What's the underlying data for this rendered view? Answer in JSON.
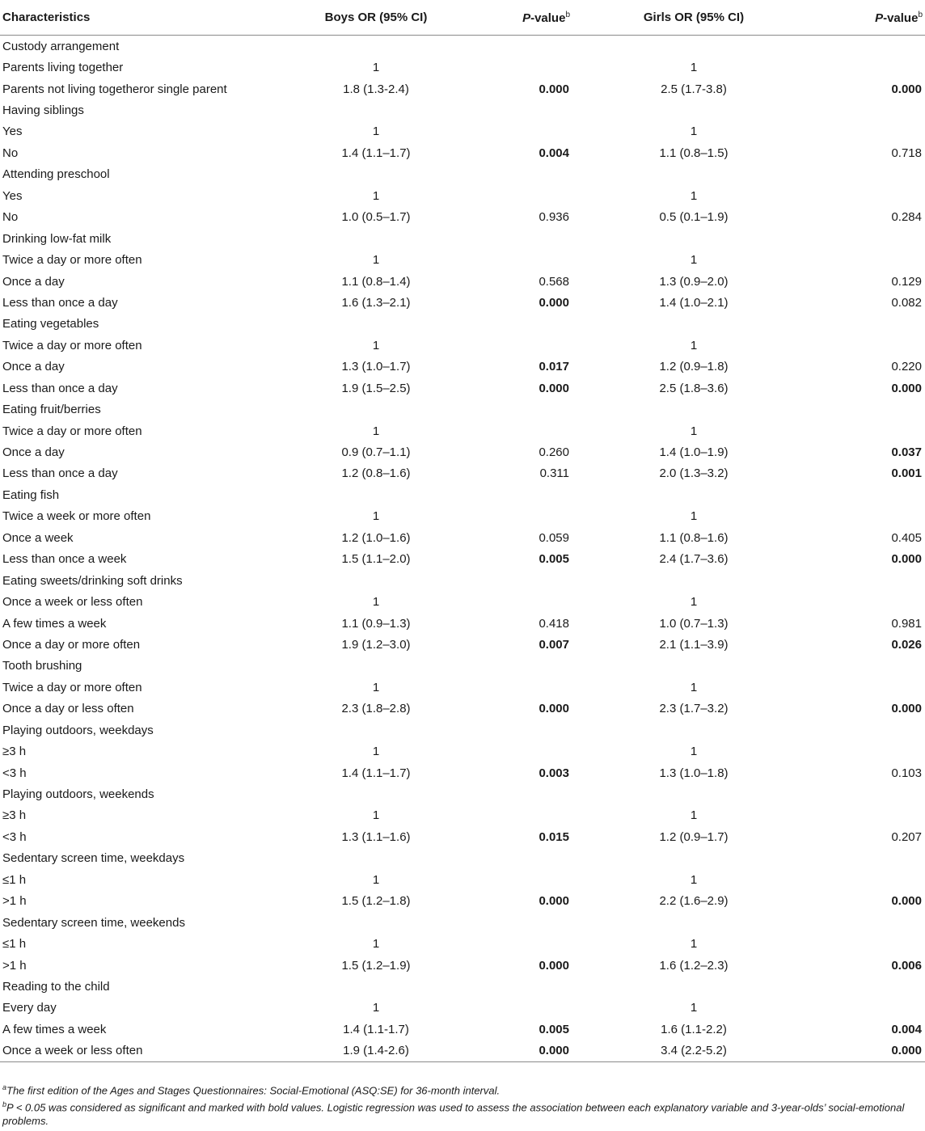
{
  "table": {
    "headers": {
      "characteristics": "Characteristics",
      "boys_or": "Boys OR (95% CI)",
      "p_value_prefix": "P",
      "p_value_suffix": "-value",
      "p_value_sup": "b",
      "girls_or": "Girls OR (95% CI)"
    },
    "rows": [
      {
        "label": "Custody arrangement",
        "boys": "",
        "boys_p": "",
        "boys_p_bold": false,
        "girls": "",
        "girls_p": "",
        "girls_p_bold": false
      },
      {
        "label": "Parents living together",
        "boys": "1",
        "boys_p": "",
        "boys_p_bold": false,
        "girls": "1",
        "girls_p": "",
        "girls_p_bold": false
      },
      {
        "label": "Parents not living togetheror single parent",
        "boys": "1.8 (1.3-2.4)",
        "boys_p": "0.000",
        "boys_p_bold": true,
        "girls": "2.5 (1.7-3.8)",
        "girls_p": "0.000",
        "girls_p_bold": true
      },
      {
        "label": "Having siblings",
        "boys": "",
        "boys_p": "",
        "boys_p_bold": false,
        "girls": "",
        "girls_p": "",
        "girls_p_bold": false
      },
      {
        "label": "Yes",
        "boys": "1",
        "boys_p": "",
        "boys_p_bold": false,
        "girls": "1",
        "girls_p": "",
        "girls_p_bold": false
      },
      {
        "label": "No",
        "boys": "1.4 (1.1–1.7)",
        "boys_p": "0.004",
        "boys_p_bold": true,
        "girls": "1.1 (0.8–1.5)",
        "girls_p": "0.718",
        "girls_p_bold": false
      },
      {
        "label": "Attending preschool",
        "boys": "",
        "boys_p": "",
        "boys_p_bold": false,
        "girls": "",
        "girls_p": "",
        "girls_p_bold": false
      },
      {
        "label": "Yes",
        "boys": "1",
        "boys_p": "",
        "boys_p_bold": false,
        "girls": "1",
        "girls_p": "",
        "girls_p_bold": false
      },
      {
        "label": "No",
        "boys": "1.0 (0.5–1.7)",
        "boys_p": "0.936",
        "boys_p_bold": false,
        "girls": "0.5 (0.1–1.9)",
        "girls_p": "0.284",
        "girls_p_bold": false
      },
      {
        "label": "Drinking low-fat milk",
        "boys": "",
        "boys_p": "",
        "boys_p_bold": false,
        "girls": "",
        "girls_p": "",
        "girls_p_bold": false
      },
      {
        "label": "Twice a day or more often",
        "boys": "1",
        "boys_p": "",
        "boys_p_bold": false,
        "girls": "1",
        "girls_p": "",
        "girls_p_bold": false
      },
      {
        "label": "Once a day",
        "boys": "1.1 (0.8–1.4)",
        "boys_p": "0.568",
        "boys_p_bold": false,
        "girls": "1.3 (0.9–2.0)",
        "girls_p": "0.129",
        "girls_p_bold": false
      },
      {
        "label": "Less than once a day",
        "boys": "1.6 (1.3–2.1)",
        "boys_p": "0.000",
        "boys_p_bold": true,
        "girls": "1.4 (1.0–2.1)",
        "girls_p": "0.082",
        "girls_p_bold": false
      },
      {
        "label": "Eating vegetables",
        "boys": "",
        "boys_p": "",
        "boys_p_bold": false,
        "girls": "",
        "girls_p": "",
        "girls_p_bold": false
      },
      {
        "label": "Twice a day or more often",
        "boys": "1",
        "boys_p": "",
        "boys_p_bold": false,
        "girls": "1",
        "girls_p": "",
        "girls_p_bold": false
      },
      {
        "label": "Once a day",
        "boys": "1.3 (1.0–1.7)",
        "boys_p": "0.017",
        "boys_p_bold": true,
        "girls": "1.2 (0.9–1.8)",
        "girls_p": "0.220",
        "girls_p_bold": false
      },
      {
        "label": "Less than once a day",
        "boys": "1.9 (1.5–2.5)",
        "boys_p": "0.000",
        "boys_p_bold": true,
        "girls": "2.5 (1.8–3.6)",
        "girls_p": "0.000",
        "girls_p_bold": true
      },
      {
        "label": "Eating fruit/berries",
        "boys": "",
        "boys_p": "",
        "boys_p_bold": false,
        "girls": "",
        "girls_p": "",
        "girls_p_bold": false
      },
      {
        "label": "Twice a day or more often",
        "boys": "1",
        "boys_p": "",
        "boys_p_bold": false,
        "girls": "1",
        "girls_p": "",
        "girls_p_bold": false
      },
      {
        "label": "Once a day",
        "boys": "0.9 (0.7–1.1)",
        "boys_p": "0.260",
        "boys_p_bold": false,
        "girls": "1.4 (1.0–1.9)",
        "girls_p": "0.037",
        "girls_p_bold": true
      },
      {
        "label": "Less than once a day",
        "boys": "1.2 (0.8–1.6)",
        "boys_p": "0.311",
        "boys_p_bold": false,
        "girls": "2.0 (1.3–3.2)",
        "girls_p": "0.001",
        "girls_p_bold": true
      },
      {
        "label": "Eating fish",
        "boys": "",
        "boys_p": "",
        "boys_p_bold": false,
        "girls": "",
        "girls_p": "",
        "girls_p_bold": false
      },
      {
        "label": "Twice a week or more often",
        "boys": "1",
        "boys_p": "",
        "boys_p_bold": false,
        "girls": "1",
        "girls_p": "",
        "girls_p_bold": false
      },
      {
        "label": "Once a week",
        "boys": "1.2 (1.0–1.6)",
        "boys_p": "0.059",
        "boys_p_bold": false,
        "girls": "1.1 (0.8–1.6)",
        "girls_p": "0.405",
        "girls_p_bold": false
      },
      {
        "label": "Less than once a week",
        "boys": "1.5 (1.1–2.0)",
        "boys_p": "0.005",
        "boys_p_bold": true,
        "girls": "2.4 (1.7–3.6)",
        "girls_p": "0.000",
        "girls_p_bold": true
      },
      {
        "label": "Eating sweets/drinking soft drinks",
        "boys": "",
        "boys_p": "",
        "boys_p_bold": false,
        "girls": "",
        "girls_p": "",
        "girls_p_bold": false
      },
      {
        "label": "Once a week or less often",
        "boys": "1",
        "boys_p": "",
        "boys_p_bold": false,
        "girls": "1",
        "girls_p": "",
        "girls_p_bold": false
      },
      {
        "label": "A few times a week",
        "boys": "1.1 (0.9–1.3)",
        "boys_p": "0.418",
        "boys_p_bold": false,
        "girls": "1.0 (0.7–1.3)",
        "girls_p": "0.981",
        "girls_p_bold": false
      },
      {
        "label": "Once a day or more often",
        "boys": "1.9 (1.2–3.0)",
        "boys_p": "0.007",
        "boys_p_bold": true,
        "girls": "2.1 (1.1–3.9)",
        "girls_p": "0.026",
        "girls_p_bold": true
      },
      {
        "label": "Tooth brushing",
        "boys": "",
        "boys_p": "",
        "boys_p_bold": false,
        "girls": "",
        "girls_p": "",
        "girls_p_bold": false
      },
      {
        "label": "Twice a day or more often",
        "boys": "1",
        "boys_p": "",
        "boys_p_bold": false,
        "girls": "1",
        "girls_p": "",
        "girls_p_bold": false
      },
      {
        "label": "Once a day or less often",
        "boys": "2.3 (1.8–2.8)",
        "boys_p": "0.000",
        "boys_p_bold": true,
        "girls": "2.3 (1.7–3.2)",
        "girls_p": "0.000",
        "girls_p_bold": true
      },
      {
        "label": "Playing outdoors, weekdays",
        "boys": "",
        "boys_p": "",
        "boys_p_bold": false,
        "girls": "",
        "girls_p": "",
        "girls_p_bold": false
      },
      {
        "label": "≥3 h",
        "boys": "1",
        "boys_p": "",
        "boys_p_bold": false,
        "girls": "1",
        "girls_p": "",
        "girls_p_bold": false
      },
      {
        "label": "<3 h",
        "boys": "1.4 (1.1–1.7)",
        "boys_p": "0.003",
        "boys_p_bold": true,
        "girls": "1.3 (1.0–1.8)",
        "girls_p": "0.103",
        "girls_p_bold": false
      },
      {
        "label": "Playing outdoors, weekends",
        "boys": "",
        "boys_p": "",
        "boys_p_bold": false,
        "girls": "",
        "girls_p": "",
        "girls_p_bold": false
      },
      {
        "label": "≥3 h",
        "boys": "1",
        "boys_p": "",
        "boys_p_bold": false,
        "girls": "1",
        "girls_p": "",
        "girls_p_bold": false
      },
      {
        "label": "<3 h",
        "boys": "1.3 (1.1–1.6)",
        "boys_p": "0.015",
        "boys_p_bold": true,
        "girls": "1.2 (0.9–1.7)",
        "girls_p": "0.207",
        "girls_p_bold": false
      },
      {
        "label": "Sedentary screen time, weekdays",
        "boys": "",
        "boys_p": "",
        "boys_p_bold": false,
        "girls": "",
        "girls_p": "",
        "girls_p_bold": false
      },
      {
        "label": "≤1 h",
        "boys": "1",
        "boys_p": "",
        "boys_p_bold": false,
        "girls": "1",
        "girls_p": "",
        "girls_p_bold": false
      },
      {
        "label": ">1 h",
        "boys": "1.5 (1.2–1.8)",
        "boys_p": "0.000",
        "boys_p_bold": true,
        "girls": "2.2 (1.6–2.9)",
        "girls_p": "0.000",
        "girls_p_bold": true
      },
      {
        "label": "Sedentary screen time, weekends",
        "boys": "",
        "boys_p": "",
        "boys_p_bold": false,
        "girls": "",
        "girls_p": "",
        "girls_p_bold": false
      },
      {
        "label": "≤1 h",
        "boys": "1",
        "boys_p": "",
        "boys_p_bold": false,
        "girls": "1",
        "girls_p": "",
        "girls_p_bold": false
      },
      {
        "label": ">1 h",
        "boys": "1.5 (1.2–1.9)",
        "boys_p": "0.000",
        "boys_p_bold": true,
        "girls": "1.6 (1.2–2.3)",
        "girls_p": "0.006",
        "girls_p_bold": true
      },
      {
        "label": "Reading to the child",
        "boys": "",
        "boys_p": "",
        "boys_p_bold": false,
        "girls": "",
        "girls_p": "",
        "girls_p_bold": false
      },
      {
        "label": "Every day",
        "boys": "1",
        "boys_p": "",
        "boys_p_bold": false,
        "girls": "1",
        "girls_p": "",
        "girls_p_bold": false
      },
      {
        "label": "A few times a week",
        "boys": "1.4 (1.1-1.7)",
        "boys_p": "0.005",
        "boys_p_bold": true,
        "girls": "1.6 (1.1-2.2)",
        "girls_p": "0.004",
        "girls_p_bold": true
      },
      {
        "label": "Once a week or less often",
        "boys": "1.9 (1.4-2.6)",
        "boys_p": "0.000",
        "boys_p_bold": true,
        "girls": "3.4 (2.2-5.2)",
        "girls_p": "0.000",
        "girls_p_bold": true
      }
    ]
  },
  "footnotes": {
    "a_marker": "a",
    "a_text": "The first edition of the Ages and Stages Questionnaires: Social-Emotional (ASQ:SE) for 36-month interval.",
    "b_marker": "b",
    "b_text": "P < 0.05 was considered as significant and marked with bold values. Logistic regression was used to assess the association between each explanatory variable and 3-year-olds’ social-emotional problems."
  }
}
